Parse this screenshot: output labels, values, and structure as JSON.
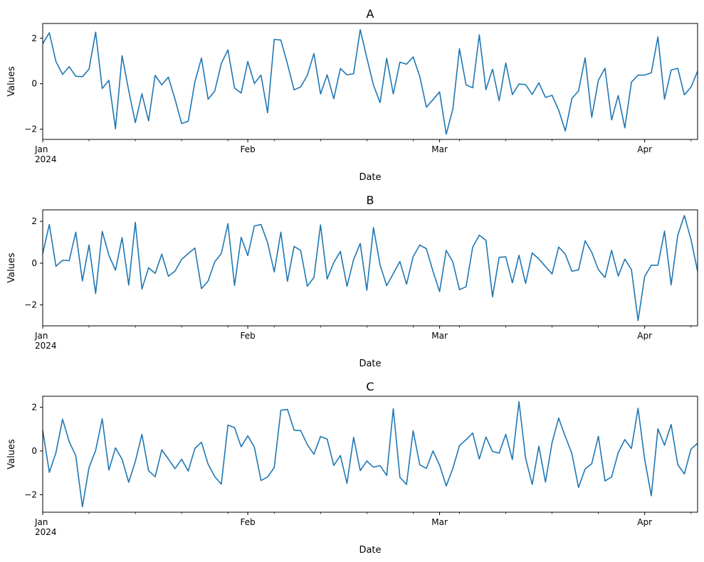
{
  "figure": {
    "colors": {
      "line": "#1f77b4",
      "axes": "#000000",
      "background": "#ffffff"
    }
  },
  "chart_data": [
    {
      "type": "line",
      "title": "A",
      "xlabel": "Date",
      "ylabel": "Values",
      "ylim": [
        -2.45,
        2.65
      ],
      "yticks": [
        -2,
        0,
        2
      ],
      "grid": false,
      "x_range": [
        "2024-01-01",
        "2024-04-09"
      ],
      "x_major_ticks": [
        {
          "date": "2024-01-01",
          "label": "Jan",
          "sublabel": "2024"
        },
        {
          "date": "2024-02-01",
          "label": "Feb"
        },
        {
          "date": "2024-03-01",
          "label": "Mar"
        },
        {
          "date": "2024-04-01",
          "label": "Apr"
        }
      ],
      "x_minor_ticks": [
        "2024-01-08",
        "2024-01-15",
        "2024-01-22",
        "2024-01-29",
        "2024-02-05",
        "2024-02-12",
        "2024-02-19",
        "2024-02-26",
        "2024-03-04",
        "2024-03-11",
        "2024-03-18",
        "2024-03-25",
        "2024-04-08"
      ],
      "series": [
        {
          "x_start": "2024-01-01",
          "x_step_days": 1,
          "values": [
            1.76,
            2.24,
            0.98,
            0.41,
            0.75,
            0.33,
            0.31,
            0.64,
            2.27,
            -0.21,
            0.15,
            -1.98,
            1.23,
            -0.3,
            -1.71,
            -0.44,
            -1.63,
            0.37,
            -0.05,
            0.29,
            -0.68,
            -1.75,
            -1.65,
            0.08,
            1.13,
            -0.68,
            -0.33,
            0.89,
            1.49,
            -0.19,
            -0.41,
            0.98,
            0.01,
            0.38,
            -1.28,
            1.95,
            1.92,
            0.87,
            -0.27,
            -0.14,
            0.37,
            1.33,
            -0.45,
            0.39,
            -0.66,
            0.67,
            0.39,
            0.44,
            2.38,
            1.14,
            -0.06,
            -0.83,
            1.12,
            -0.45,
            0.95,
            0.86,
            1.18,
            0.32,
            -1.03,
            -0.7,
            -0.36,
            -2.22,
            -1.12,
            1.54,
            -0.05,
            -0.18,
            2.15,
            -0.26,
            0.64,
            -0.75,
            0.91,
            -0.48,
            -0.01,
            -0.04,
            -0.47,
            0.04,
            -0.6,
            -0.51,
            -1.16,
            -2.08,
            -0.65,
            -0.31,
            1.14,
            -1.48,
            0.15,
            0.68,
            -1.59,
            -0.52,
            -1.94,
            0.07,
            0.38,
            0.38,
            0.48,
            2.06,
            -0.68,
            0.6,
            0.68,
            -0.49,
            -0.15,
            0.55
          ]
        }
      ]
    },
    {
      "type": "line",
      "title": "B",
      "xlabel": "Date",
      "ylabel": "Values",
      "ylim": [
        -3.0,
        2.55
      ],
      "yticks": [
        -2,
        0,
        2
      ],
      "grid": false,
      "x_range": [
        "2024-01-01",
        "2024-04-09"
      ],
      "x_major_ticks": [
        {
          "date": "2024-01-01",
          "label": "Jan",
          "sublabel": "2024"
        },
        {
          "date": "2024-02-01",
          "label": "Feb"
        },
        {
          "date": "2024-03-01",
          "label": "Mar"
        },
        {
          "date": "2024-04-01",
          "label": "Apr"
        }
      ],
      "x_minor_ticks": [
        "2024-01-08",
        "2024-01-15",
        "2024-01-22",
        "2024-01-29",
        "2024-02-05",
        "2024-02-12",
        "2024-02-19",
        "2024-02-26",
        "2024-03-04",
        "2024-03-11",
        "2024-03-18",
        "2024-03-25",
        "2024-04-08"
      ],
      "series": [
        {
          "x_start": "2024-01-01",
          "x_step_days": 1,
          "values": [
            0.45,
            1.85,
            -0.15,
            0.14,
            0.12,
            1.48,
            -0.85,
            0.87,
            -1.45,
            1.52,
            0.38,
            -0.34,
            1.22,
            -1.05,
            1.95,
            -1.24,
            -0.22,
            -0.49,
            0.43,
            -0.63,
            -0.38,
            0.18,
            0.46,
            0.72,
            -1.22,
            -0.86,
            0.06,
            0.46,
            1.89,
            -1.07,
            1.24,
            0.36,
            1.78,
            1.85,
            0.98,
            -0.42,
            1.48,
            -0.87,
            0.8,
            0.61,
            -1.1,
            -0.69,
            1.83,
            -0.76,
            0.03,
            0.56,
            -1.11,
            0.17,
            0.94,
            -1.3,
            1.7,
            -0.09,
            -1.08,
            -0.5,
            0.08,
            -1.01,
            0.31,
            0.87,
            0.69,
            -0.39,
            -1.36,
            0.61,
            0.06,
            -1.27,
            -1.13,
            0.76,
            1.34,
            1.09,
            -1.61,
            0.28,
            0.3,
            -0.94,
            0.38,
            -0.97,
            0.49,
            0.2,
            -0.16,
            -0.52,
            0.77,
            0.43,
            -0.39,
            -0.32,
            1.07,
            0.52,
            -0.31,
            -0.69,
            0.61,
            -0.62,
            0.19,
            -0.31,
            -2.75,
            -0.64,
            -0.1,
            -0.1,
            1.53,
            -1.04,
            1.33,
            2.28,
            1.13,
            -0.39
          ]
        }
      ]
    },
    {
      "type": "line",
      "title": "C",
      "xlabel": "Date",
      "ylabel": "Values",
      "ylim": [
        -2.8,
        2.5
      ],
      "yticks": [
        -2,
        0,
        2
      ],
      "grid": false,
      "x_range": [
        "2024-01-01",
        "2024-04-09"
      ],
      "x_major_ticks": [
        {
          "date": "2024-01-01",
          "label": "Jan",
          "sublabel": "2024"
        },
        {
          "date": "2024-02-01",
          "label": "Feb"
        },
        {
          "date": "2024-03-01",
          "label": "Mar"
        },
        {
          "date": "2024-04-01",
          "label": "Apr"
        }
      ],
      "x_minor_ticks": [
        "2024-01-08",
        "2024-01-15",
        "2024-01-22",
        "2024-01-29",
        "2024-02-05",
        "2024-02-12",
        "2024-02-19",
        "2024-02-26",
        "2024-03-04",
        "2024-03-11",
        "2024-03-18",
        "2024-03-25",
        "2024-04-08"
      ],
      "series": [
        {
          "x_start": "2024-01-01",
          "x_step_days": 1,
          "values": [
            0.95,
            -0.98,
            -0.08,
            1.45,
            0.43,
            -0.22,
            -2.55,
            -0.76,
            0.02,
            1.47,
            -0.88,
            0.14,
            -0.38,
            -1.43,
            -0.48,
            0.76,
            -0.9,
            -1.18,
            0.05,
            -0.37,
            -0.81,
            -0.38,
            -0.92,
            0.11,
            0.4,
            -0.6,
            -1.17,
            -1.52,
            1.18,
            1.07,
            0.19,
            0.69,
            0.17,
            -1.35,
            -1.19,
            -0.76,
            1.86,
            1.9,
            0.95,
            0.93,
            0.29,
            -0.15,
            0.66,
            0.54,
            -0.66,
            -0.21,
            -1.48,
            0.62,
            -0.9,
            -0.46,
            -0.74,
            -0.67,
            -1.12,
            1.93,
            -1.21,
            -1.53,
            0.92,
            -0.63,
            -0.8,
            0.0,
            -0.65,
            -1.6,
            -0.8,
            0.24,
            0.51,
            0.82,
            -0.37,
            0.64,
            -0.02,
            -0.1,
            0.76,
            -0.39,
            2.25,
            -0.33,
            -1.53,
            0.22,
            -1.42,
            0.38,
            1.5,
            0.66,
            -0.12,
            -1.67,
            -0.82,
            -0.58,
            0.67,
            -1.37,
            -1.19,
            -0.08,
            0.52,
            0.11,
            1.95,
            -0.38,
            -2.05,
            1.01,
            0.26,
            1.21,
            -0.63,
            -1.05,
            0.08,
            0.35
          ]
        }
      ]
    }
  ]
}
